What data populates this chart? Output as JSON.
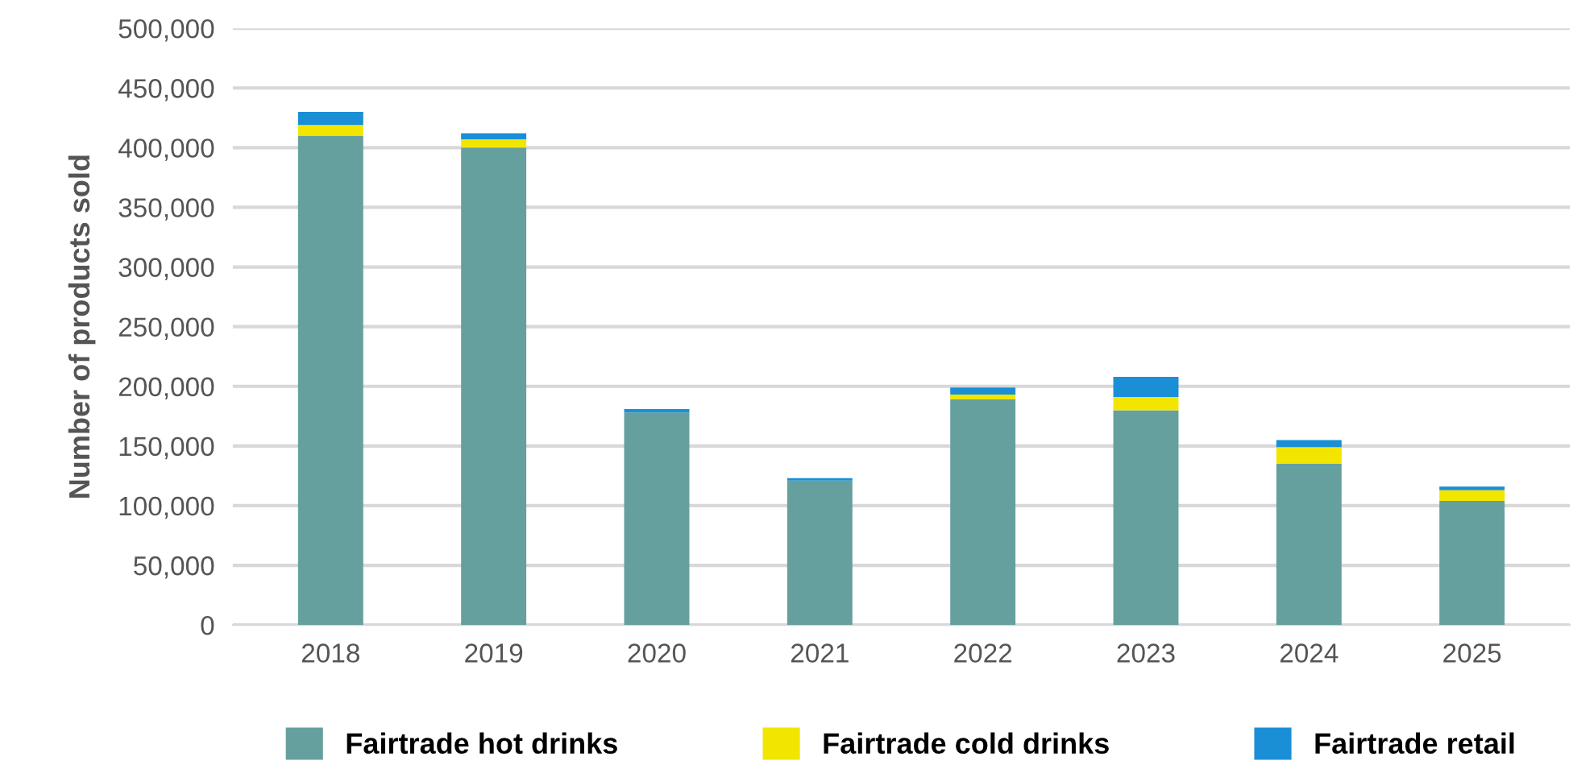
{
  "chart_data": {
    "type": "bar",
    "stacked": true,
    "ylabel": "Number of products sold",
    "categories": [
      "2018",
      "2019",
      "2020",
      "2021",
      "2022",
      "2023",
      "2024",
      "2025"
    ],
    "series": [
      {
        "name": "Fairtrade hot drinks",
        "color": "#65a09e",
        "values": [
          410000,
          400000,
          178000,
          121000,
          189000,
          180000,
          135000,
          104000
        ]
      },
      {
        "name": "Fairtrade cold drinks",
        "color": "#f2e600",
        "values": [
          9000,
          7000,
          null,
          null,
          4000,
          11000,
          14000,
          9000
        ]
      },
      {
        "name": "Fairtrade retail",
        "color": "#1a8fd6",
        "values": [
          11000,
          5000,
          3000,
          2000,
          6000,
          17000,
          6000,
          3000
        ]
      }
    ],
    "ylim": [
      0,
      500000
    ],
    "yticks": [
      {
        "value": 0,
        "label": "0"
      },
      {
        "value": 50000,
        "label": "50,000"
      },
      {
        "value": 100000,
        "label": "100,000"
      },
      {
        "value": 150000,
        "label": "150,000"
      },
      {
        "value": 200000,
        "label": "200,000"
      },
      {
        "value": 250000,
        "label": "250,000"
      },
      {
        "value": 300000,
        "label": "300,000"
      },
      {
        "value": 350000,
        "label": "350,000"
      },
      {
        "value": 400000,
        "label": "400,000"
      },
      {
        "value": 450000,
        "label": "450,000"
      },
      {
        "value": 500000,
        "label": "500,000"
      }
    ],
    "grid": "y",
    "legend": "bottom"
  }
}
